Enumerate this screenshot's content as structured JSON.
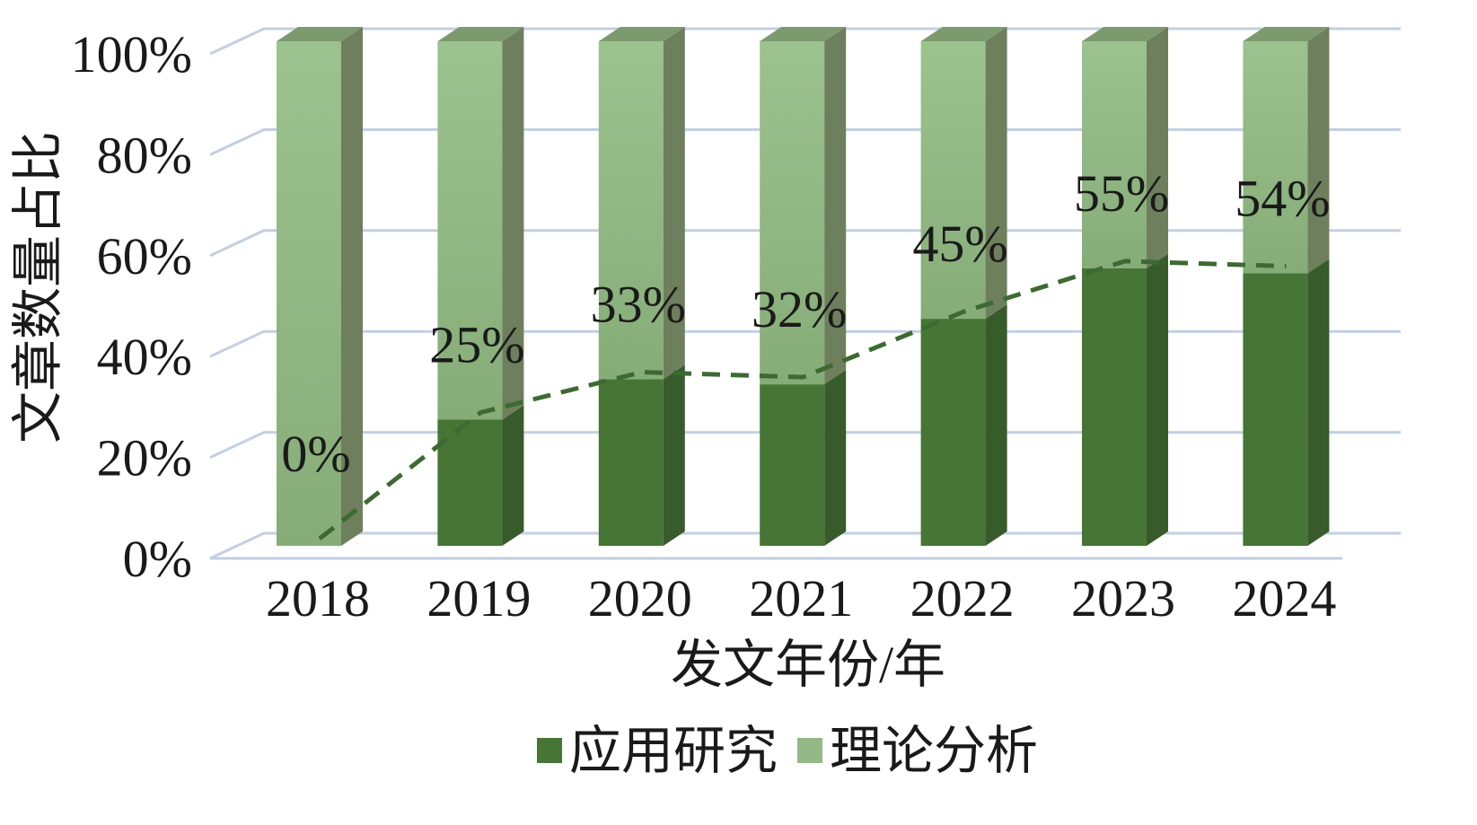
{
  "chart_data": {
    "type": "bar",
    "stacked": true,
    "three_d": true,
    "title": "",
    "xlabel": "发文年份/年",
    "ylabel": "文章数量占比",
    "categories": [
      "2018",
      "2019",
      "2020",
      "2021",
      "2022",
      "2023",
      "2024"
    ],
    "series": [
      {
        "name": "应用研究",
        "values": [
          0,
          25,
          33,
          32,
          45,
          55,
          54
        ],
        "color": "#467536"
      },
      {
        "name": "理论分析",
        "values": [
          100,
          75,
          67,
          68,
          55,
          45,
          46
        ],
        "color": "#93b986"
      }
    ],
    "data_labels": [
      "0%",
      "25%",
      "33%",
      "32%",
      "45%",
      "55%",
      "54%"
    ],
    "trend_line": {
      "series": "应用研究",
      "style": "dashed",
      "color": "#3d6a32"
    },
    "ylim": [
      0,
      100
    ],
    "y_ticks": [
      "0%",
      "20%",
      "40%",
      "60%",
      "80%",
      "100%"
    ],
    "y_tick_values": [
      0,
      20,
      40,
      60,
      80,
      100
    ],
    "grid": true,
    "grid_color": "#c3cfe2",
    "legend_position": "bottom-center"
  }
}
